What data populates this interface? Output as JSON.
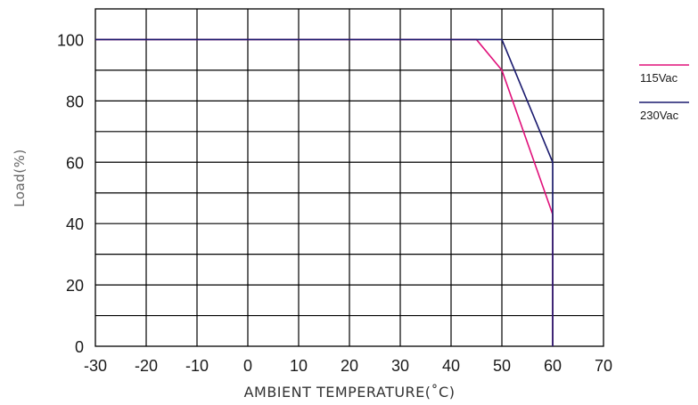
{
  "chart_data": {
    "type": "line",
    "title": "",
    "xlabel": "AMBIENT TEMPERATURE(˚C)",
    "ylabel": "Load(%)",
    "xlim": [
      -30,
      70
    ],
    "ylim": [
      0,
      110
    ],
    "x_ticks": [
      -30,
      -20,
      -10,
      0,
      10,
      20,
      30,
      40,
      50,
      60,
      70
    ],
    "y_ticks": [
      0,
      20,
      40,
      60,
      80,
      100
    ],
    "grid": true,
    "legend_position": "right",
    "series": [
      {
        "name": "115Vac",
        "color": "#e0107a",
        "points": [
          [
            -30,
            100
          ],
          [
            45,
            100
          ],
          [
            50,
            90
          ],
          [
            60,
            43
          ],
          [
            60,
            0
          ]
        ]
      },
      {
        "name": "230Vac",
        "color": "#1a1a6e",
        "points": [
          [
            -30,
            100
          ],
          [
            50,
            100
          ],
          [
            60,
            60
          ],
          [
            60,
            0
          ]
        ]
      }
    ]
  }
}
